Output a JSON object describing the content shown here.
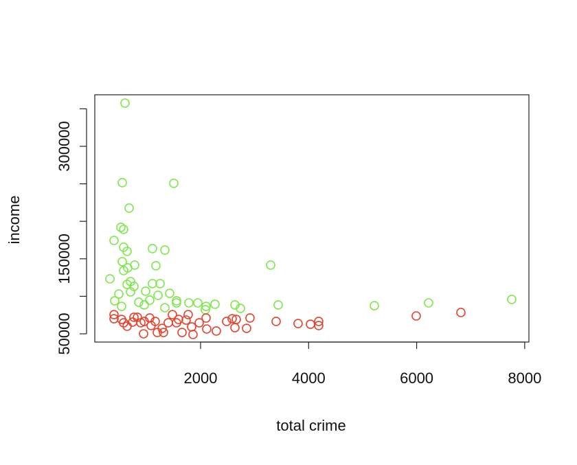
{
  "chart_data": {
    "type": "scatter",
    "xlabel": "total crime",
    "ylabel": "income",
    "xlim": [
      42,
      8078
    ],
    "ylim": [
      39000,
      368700
    ],
    "xticks": [
      2000,
      4000,
      6000,
      8000
    ],
    "yticks": [
      50000,
      {
        "value": 100000,
        "label": null
      },
      150000,
      {
        "value": 200000,
        "label": null
      },
      {
        "value": 250000,
        "label": null
      },
      300000,
      {
        "value": 350000,
        "label": null
      }
    ],
    "series": [
      {
        "color": "#7de84b",
        "x": [
          601,
          551,
          1504,
          678,
          525,
          576,
          398,
          576,
          640,
          1110,
          1339,
          551,
          780,
          1174,
          3297,
          652,
          576,
          322,
          704,
          767,
          640,
          1110,
          1250,
          983,
          704,
          1428,
          487,
          1212,
          1059,
          411,
          856,
          1555,
          1555,
          1784,
          1949,
          2102,
          2267,
          2636,
          2738,
          3437,
          5217,
          6221,
          7760,
          538,
          958,
          1339,
          2089
        ],
        "values": [
          357700,
          251500,
          250600,
          217600,
          192000,
          189200,
          174500,
          165400,
          159900,
          163600,
          161700,
          146200,
          141600,
          140700,
          141600,
          138000,
          134300,
          123300,
          119600,
          113200,
          115900,
          116900,
          116900,
          106800,
          105900,
          104000,
          103100,
          101300,
          94900,
          94000,
          92100,
          94000,
          91200,
          91200,
          91200,
          86600,
          89400,
          88500,
          83900,
          88500,
          87500,
          91200,
          95800,
          86600,
          88500,
          84800,
          82100
        ]
      },
      {
        "color": "#e8422c",
        "x": [
          398,
          398,
          538,
          640,
          742,
          831,
          945,
          958,
          1059,
          1161,
          1199,
          1288,
          1314,
          1402,
          1479,
          1555,
          1657,
          1733,
          1771,
          1835,
          1860,
          1975,
          2102,
          2114,
          2292,
          2483,
          2585,
          2636,
          2661,
          2852,
          2915,
          3399,
          3805,
          4034,
          4187,
          4187,
          5992,
          6819,
          576,
          767,
          895,
          1085,
          1593
        ],
        "values": [
          75600,
          70100,
          69200,
          60100,
          65600,
          72000,
          50000,
          66500,
          71100,
          66500,
          51800,
          57300,
          51800,
          64700,
          75600,
          64700,
          51800,
          68300,
          75600,
          59200,
          49100,
          64700,
          71100,
          56400,
          53700,
          66500,
          70100,
          58200,
          69200,
          57300,
          71100,
          66500,
          63700,
          62800,
          66500,
          61000,
          73800,
          78400,
          64700,
          72000,
          64700,
          61000,
          69200
        ]
      }
    ]
  }
}
